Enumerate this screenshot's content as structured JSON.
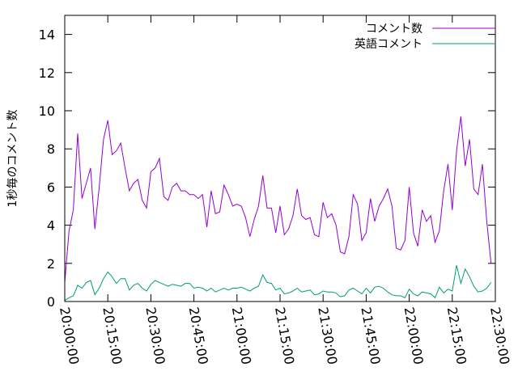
{
  "chart_data": {
    "type": "line",
    "ylabel": "1秒毎のコメント数",
    "xlabel": "",
    "ylim": [
      0,
      15
    ],
    "yticks": [
      "0",
      "2",
      "4",
      "6",
      "8",
      "10",
      "12",
      "14"
    ],
    "xlim": [
      "20:00:00",
      "22:30:00"
    ],
    "xticks": [
      "20:00:00",
      "20:15:00",
      "20:30:00",
      "20:45:00",
      "21:00:00",
      "21:15:00",
      "21:30:00",
      "21:45:00",
      "22:00:00",
      "22:15:00",
      "22:30:00"
    ],
    "legend_position": "top-right",
    "grid": false,
    "series": [
      {
        "name": "コメント数",
        "color": "#9400d3",
        "x": [
          "20:00:00",
          "20:01:30",
          "20:03:00",
          "20:04:30",
          "20:06:00",
          "20:07:30",
          "20:09:00",
          "20:10:30",
          "20:12:00",
          "20:13:30",
          "20:15:00",
          "20:16:30",
          "20:18:00",
          "20:19:30",
          "20:21:00",
          "20:22:30",
          "20:24:00",
          "20:25:30",
          "20:27:00",
          "20:28:30",
          "20:30:00",
          "20:31:30",
          "20:33:00",
          "20:34:30",
          "20:36:00",
          "20:37:30",
          "20:39:00",
          "20:40:30",
          "20:42:00",
          "20:43:30",
          "20:45:00",
          "20:46:30",
          "20:48:00",
          "20:49:30",
          "20:51:00",
          "20:52:30",
          "20:54:00",
          "20:55:30",
          "20:57:00",
          "20:58:30",
          "21:00:00",
          "21:01:30",
          "21:03:00",
          "21:04:30",
          "21:06:00",
          "21:07:30",
          "21:09:00",
          "21:10:30",
          "21:12:00",
          "21:13:30",
          "21:15:00",
          "21:16:30",
          "21:18:00",
          "21:19:30",
          "21:21:00",
          "21:22:30",
          "21:24:00",
          "21:25:30",
          "21:27:00",
          "21:28:30",
          "21:30:00",
          "21:31:30",
          "21:33:00",
          "21:34:30",
          "21:36:00",
          "21:37:30",
          "21:39:00",
          "21:40:30",
          "21:42:00",
          "21:43:30",
          "21:45:00",
          "21:46:30",
          "21:48:00",
          "21:49:30",
          "21:51:00",
          "21:52:30",
          "21:54:00",
          "21:55:30",
          "21:57:00",
          "21:58:30",
          "22:00:00",
          "22:01:30",
          "22:03:00",
          "22:04:30",
          "22:06:00",
          "22:07:30",
          "22:09:00",
          "22:10:30",
          "22:12:00",
          "22:13:30",
          "22:15:00",
          "22:16:30",
          "22:18:00",
          "22:19:30",
          "22:21:00",
          "22:22:30",
          "22:24:00",
          "22:25:30",
          "22:27:00",
          "22:28:30"
        ],
        "values": [
          1.0,
          3.7,
          4.8,
          8.8,
          5.4,
          6.2,
          7.0,
          3.8,
          6.0,
          8.5,
          9.5,
          7.7,
          7.9,
          8.3,
          7.0,
          5.8,
          6.2,
          6.4,
          5.3,
          4.9,
          6.8,
          7.0,
          7.5,
          5.5,
          5.3,
          6.0,
          6.2,
          5.8,
          5.8,
          5.6,
          5.6,
          5.4,
          5.6,
          3.9,
          5.8,
          4.6,
          4.7,
          6.1,
          5.6,
          5.0,
          5.1,
          5.0,
          4.4,
          3.4,
          4.3,
          5.0,
          6.6,
          4.9,
          4.9,
          3.6,
          5.0,
          3.5,
          3.8,
          4.5,
          5.9,
          4.5,
          4.3,
          4.4,
          3.5,
          3.4,
          5.2,
          4.4,
          4.6,
          4.0,
          2.6,
          2.5,
          3.4,
          5.6,
          5.1,
          3.2,
          3.6,
          5.4,
          4.2,
          5.0,
          5.4,
          5.9,
          5.0,
          2.8,
          2.7,
          3.2,
          6.0,
          3.6,
          2.9,
          4.8,
          4.2,
          4.5,
          3.1,
          3.7,
          5.8,
          7.2,
          4.8,
          7.9,
          9.7,
          7.1,
          8.5,
          5.9,
          5.6,
          7.2,
          4.2,
          2.0
        ]
      },
      {
        "name": "英語コメント",
        "color": "#009e73",
        "x": [
          "20:00:00",
          "20:01:30",
          "20:03:00",
          "20:04:30",
          "20:06:00",
          "20:07:30",
          "20:09:00",
          "20:10:30",
          "20:12:00",
          "20:13:30",
          "20:15:00",
          "20:16:30",
          "20:18:00",
          "20:19:30",
          "20:21:00",
          "20:22:30",
          "20:24:00",
          "20:25:30",
          "20:27:00",
          "20:28:30",
          "20:30:00",
          "20:31:30",
          "20:33:00",
          "20:34:30",
          "20:36:00",
          "20:37:30",
          "20:39:00",
          "20:40:30",
          "20:42:00",
          "20:43:30",
          "20:45:00",
          "20:46:30",
          "20:48:00",
          "20:49:30",
          "20:51:00",
          "20:52:30",
          "20:54:00",
          "20:55:30",
          "20:57:00",
          "20:58:30",
          "21:00:00",
          "21:01:30",
          "21:03:00",
          "21:04:30",
          "21:06:00",
          "21:07:30",
          "21:09:00",
          "21:10:30",
          "21:12:00",
          "21:13:30",
          "21:15:00",
          "21:16:30",
          "21:18:00",
          "21:19:30",
          "21:21:00",
          "21:22:30",
          "21:24:00",
          "21:25:30",
          "21:27:00",
          "21:28:30",
          "21:30:00",
          "21:31:30",
          "21:33:00",
          "21:34:30",
          "21:36:00",
          "21:37:30",
          "21:39:00",
          "21:40:30",
          "21:42:00",
          "21:43:30",
          "21:45:00",
          "21:46:30",
          "21:48:00",
          "21:49:30",
          "21:51:00",
          "21:52:30",
          "21:54:00",
          "21:55:30",
          "21:57:00",
          "21:58:30",
          "22:00:00",
          "22:01:30",
          "22:03:00",
          "22:04:30",
          "22:06:00",
          "22:07:30",
          "22:09:00",
          "22:10:30",
          "22:12:00",
          "22:13:30",
          "22:15:00",
          "22:16:30",
          "22:18:00",
          "22:19:30",
          "22:21:00",
          "22:22:30",
          "22:24:00",
          "22:25:30",
          "22:27:00",
          "22:28:30"
        ],
        "values": [
          0.05,
          0.2,
          0.3,
          0.85,
          0.7,
          1.0,
          1.1,
          0.35,
          0.7,
          1.2,
          1.55,
          1.3,
          0.95,
          1.2,
          1.2,
          0.6,
          0.85,
          0.95,
          0.7,
          0.55,
          0.9,
          1.1,
          1.0,
          0.9,
          0.8,
          0.9,
          0.85,
          0.8,
          0.95,
          0.95,
          0.7,
          0.75,
          0.7,
          0.55,
          0.7,
          0.5,
          0.6,
          0.7,
          0.6,
          0.7,
          0.7,
          0.75,
          0.65,
          0.55,
          0.7,
          0.8,
          1.4,
          1.0,
          0.95,
          0.6,
          0.7,
          0.4,
          0.45,
          0.55,
          0.7,
          0.5,
          0.55,
          0.6,
          0.35,
          0.4,
          0.55,
          0.5,
          0.5,
          0.45,
          0.25,
          0.3,
          0.6,
          0.7,
          0.55,
          0.4,
          0.7,
          0.45,
          0.75,
          0.8,
          0.7,
          0.5,
          0.35,
          0.3,
          0.3,
          0.2,
          0.65,
          0.4,
          0.3,
          0.5,
          0.45,
          0.4,
          0.2,
          0.75,
          0.45,
          0.65,
          0.55,
          1.9,
          0.95,
          1.7,
          1.3,
          0.8,
          0.5,
          0.55,
          0.7,
          1.0
        ]
      }
    ]
  }
}
